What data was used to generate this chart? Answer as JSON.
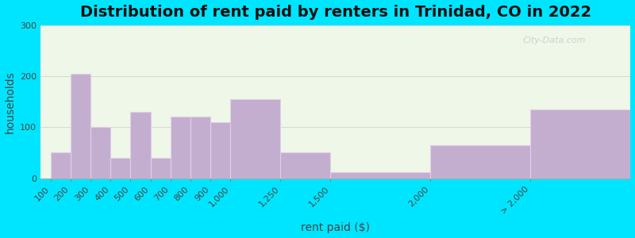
{
  "title": "Distribution of rent paid by renters in Trinidad, CO in 2022",
  "xlabel": "rent paid ($)",
  "ylabel": "households",
  "tick_labels": [
    "100",
    "200",
    "300",
    "400",
    "500",
    "600",
    "700",
    "800",
    "900",
    "1,000",
    "1,250",
    "1,500",
    "2,000",
    "> 2,000"
  ],
  "bin_edges": [
    100,
    200,
    300,
    400,
    500,
    600,
    700,
    800,
    900,
    1000,
    1250,
    1500,
    2000,
    2500,
    3000
  ],
  "values": [
    50,
    205,
    100,
    40,
    130,
    40,
    120,
    120,
    110,
    155,
    50,
    12,
    65,
    135
  ],
  "bar_color": "#c4aed0",
  "bar_edge_color": "#e0d0e8",
  "ylim": [
    0,
    300
  ],
  "yticks": [
    0,
    100,
    200,
    300
  ],
  "background_outer": "#00e5ff",
  "background_inner": "#eef7e8",
  "title_fontsize": 14,
  "axis_label_fontsize": 10,
  "tick_fontsize": 8,
  "watermark_text": "City-Data.com"
}
